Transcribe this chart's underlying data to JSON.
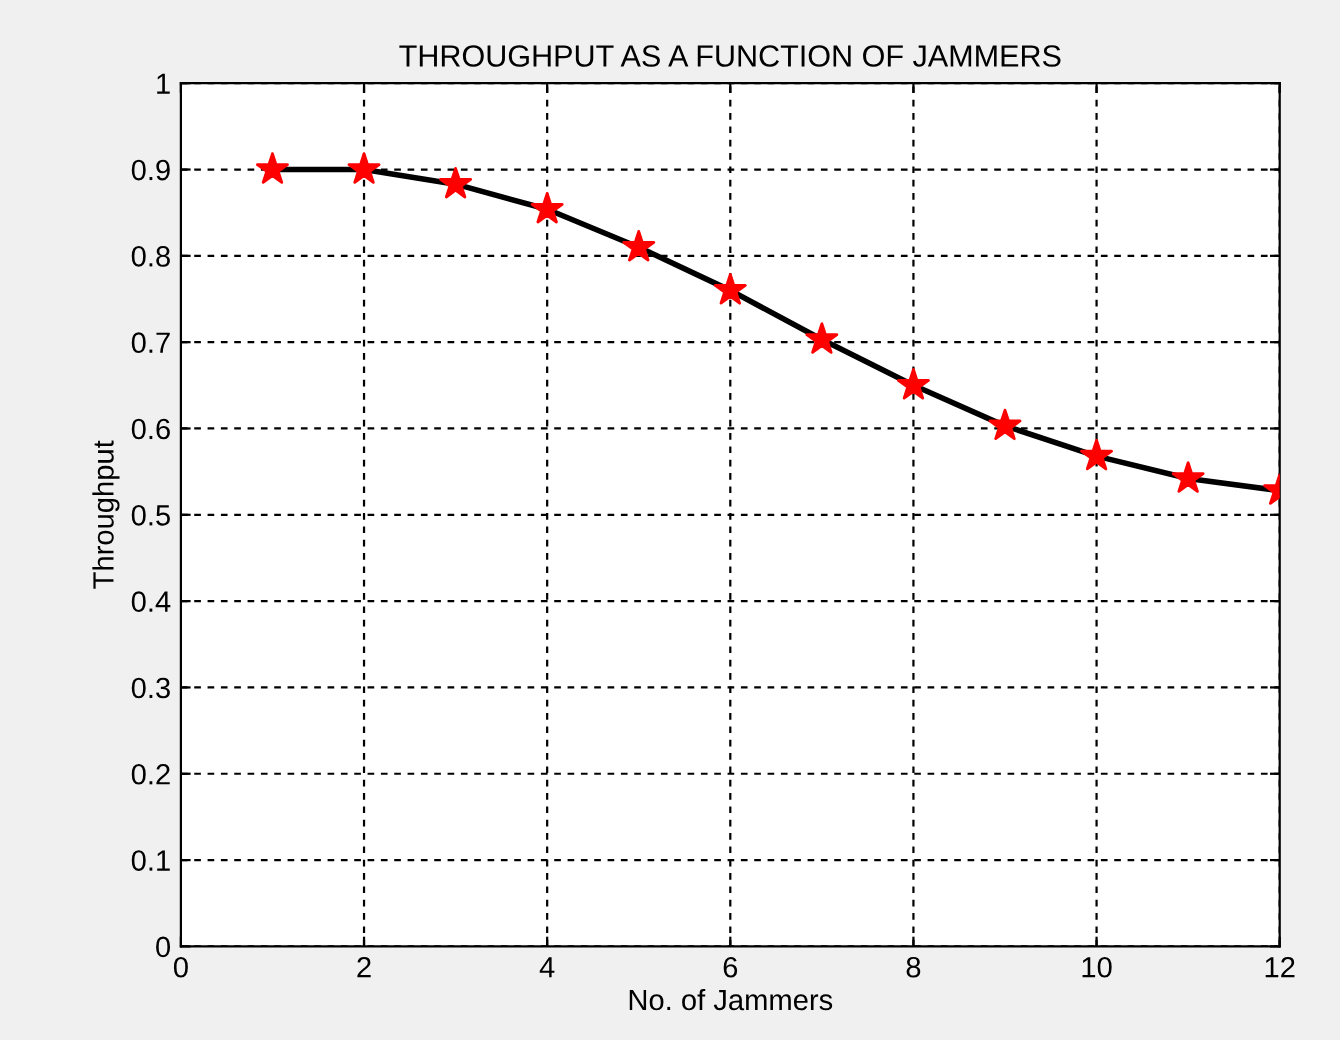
{
  "chart_data": {
    "type": "line",
    "title": "THROUGHPUT AS A FUNCTION OF JAMMERS",
    "xlabel": "No. of Jammers",
    "ylabel": "Throughput",
    "x": [
      1,
      2,
      3,
      4,
      5,
      6,
      7,
      8,
      9,
      10,
      11,
      12
    ],
    "series": [
      {
        "color": "#000000",
        "colors": [
          "#ff0000",
          "#ff0000",
          "#ff0000",
          "#ff0000",
          "#ff0000",
          "#ff0000",
          "#ff0000",
          "#ff0000",
          "#ff0000",
          "#ff0000",
          "#ff0000",
          "#ff0000"
        ],
        "values": [
          0.9,
          0.9,
          0.883,
          0.854,
          0.81,
          0.76,
          0.703,
          0.65,
          0.603,
          0.568,
          0.542,
          0.528
        ]
      }
    ],
    "xlim": [
      0,
      12
    ],
    "xticks": [
      0,
      2,
      4,
      6,
      8,
      10,
      12
    ],
    "ylim": [
      0,
      1
    ],
    "yticks": [
      0,
      0.1,
      0.2,
      0.3,
      0.4,
      0.5,
      0.6,
      0.7,
      0.8,
      0.9,
      1
    ],
    "grid": true,
    "marker": "star",
    "line_style": "solid"
  }
}
